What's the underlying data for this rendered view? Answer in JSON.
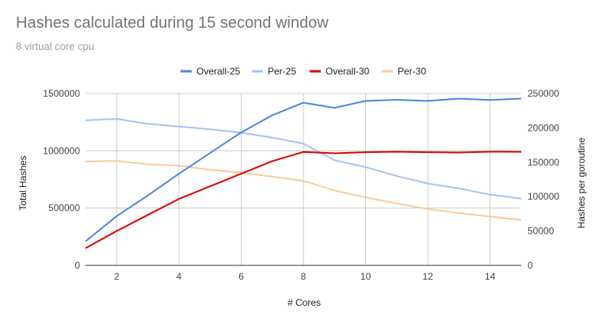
{
  "chart_data": {
    "type": "line",
    "title": "Hashes calculated during 15 second window",
    "subtitle": "8 virtual core cpu",
    "xlabel": "# Cores",
    "ylabel_left": "Total Hashes",
    "ylabel_right": "Hashes per goroutine",
    "x": [
      1,
      2,
      3,
      4,
      5,
      6,
      7,
      8,
      9,
      10,
      11,
      12,
      13,
      14,
      15
    ],
    "xlim": [
      1,
      15
    ],
    "x_ticks": [
      2,
      4,
      6,
      8,
      10,
      12,
      14
    ],
    "ylim_left": [
      0,
      1500000
    ],
    "ylim_right": [
      0,
      250000
    ],
    "y_ticks_left": [
      0,
      500000,
      1000000,
      1500000
    ],
    "y_ticks_right": [
      0,
      50000,
      100000,
      150000,
      200000,
      250000
    ],
    "grid": true,
    "legend_position": "top",
    "series": [
      {
        "name": "Overall-25",
        "axis": "left",
        "color": "#4a86e8",
        "values": [
          210000,
          430000,
          610000,
          800000,
          980000,
          1160000,
          1310000,
          1420000,
          1375000,
          1435000,
          1445000,
          1435000,
          1455000,
          1443000,
          1455000
        ]
      },
      {
        "name": "Per-25",
        "axis": "right",
        "color": "#a4c2f4",
        "values": [
          211000,
          213000,
          206000,
          202000,
          198000,
          193000,
          186000,
          177000,
          153000,
          143000,
          130000,
          119000,
          112000,
          103000,
          97000
        ]
      },
      {
        "name": "Overall-30",
        "axis": "left",
        "color": "#e00000",
        "values": [
          150000,
          300000,
          440000,
          580000,
          690000,
          800000,
          910000,
          990000,
          978000,
          988000,
          992000,
          988000,
          985000,
          992000,
          991000
        ]
      },
      {
        "name": "Per-30",
        "axis": "right",
        "color": "#f9cb9c",
        "values": [
          151000,
          152000,
          147000,
          145000,
          139000,
          135000,
          129000,
          123000,
          109000,
          99000,
          90000,
          82000,
          76000,
          71000,
          66000
        ]
      }
    ]
  }
}
